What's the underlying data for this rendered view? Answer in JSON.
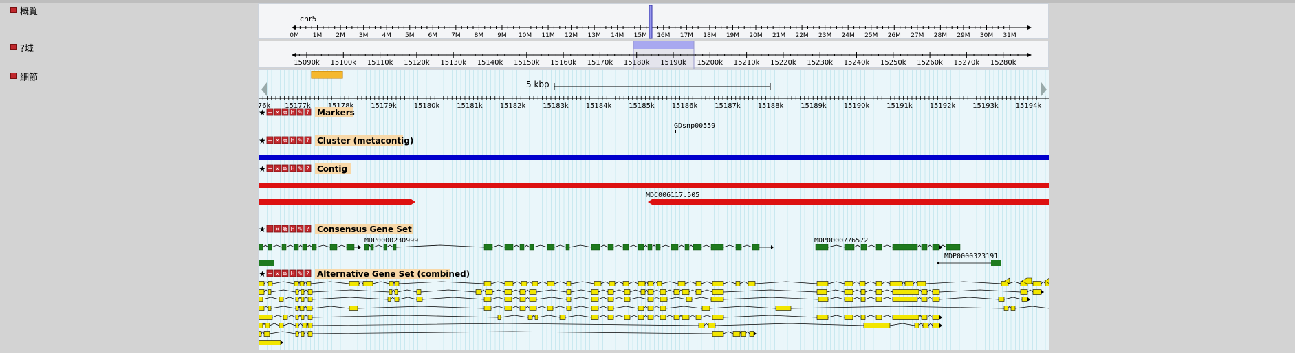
{
  "sections": {
    "overview": "概覧",
    "region": "?域",
    "details": "細節"
  },
  "overview": {
    "chrom": "chr5",
    "ticks": [
      "0M",
      "1M",
      "2M",
      "3M",
      "4M",
      "5M",
      "6M",
      "7M",
      "8M",
      "9M",
      "10M",
      "11M",
      "12M",
      "13M",
      "14M",
      "15M",
      "16M",
      "17M",
      "18M",
      "19M",
      "20M",
      "21M",
      "22M",
      "23M",
      "24M",
      "25M",
      "26M",
      "27M",
      "28M",
      "29M",
      "30M",
      "31M"
    ]
  },
  "region": {
    "ticks": [
      "15090k",
      "15100k",
      "15110k",
      "15120k",
      "15130k",
      "15140k",
      "15150k",
      "15160k",
      "15170k",
      "15180k",
      "15190k",
      "15200k",
      "15210k",
      "15220k",
      "15230k",
      "15240k",
      "15250k",
      "15260k",
      "15270k",
      "15280k"
    ]
  },
  "details": {
    "scale_label": "5 kbp",
    "ticks": [
      "76k",
      "15177k",
      "15178k",
      "15179k",
      "15180k",
      "15181k",
      "15182k",
      "15183k",
      "15184k",
      "15185k",
      "15186k",
      "15187k",
      "15188k",
      "15189k",
      "15190k",
      "15191k",
      "15192k",
      "15193k",
      "15194k"
    ]
  },
  "tracks": [
    {
      "title": "Markers",
      "features": [
        "GDsnp00559"
      ]
    },
    {
      "title": "Cluster (metacontig)",
      "features": []
    },
    {
      "title": "Contig",
      "features": [
        "MDC006117.505"
      ]
    },
    {
      "title": "Consensus Gene Set",
      "features": [
        "MDP0000230999",
        "MDP0000776572",
        "MDP0000323191"
      ]
    },
    {
      "title": "Alternative Gene Set (combined)",
      "features": []
    }
  ],
  "colors": {
    "cluster": "#0000cc",
    "contig": "#dd1111",
    "consensus": "#1e7a1e",
    "alternative": "#f2e600",
    "track_label_bg": "#f8d8a8",
    "highlight": "#a8a8f0"
  },
  "icons": [
    "star-icon",
    "collapse-icon",
    "close-icon",
    "share-icon",
    "split-icon",
    "config-icon",
    "help-icon"
  ]
}
